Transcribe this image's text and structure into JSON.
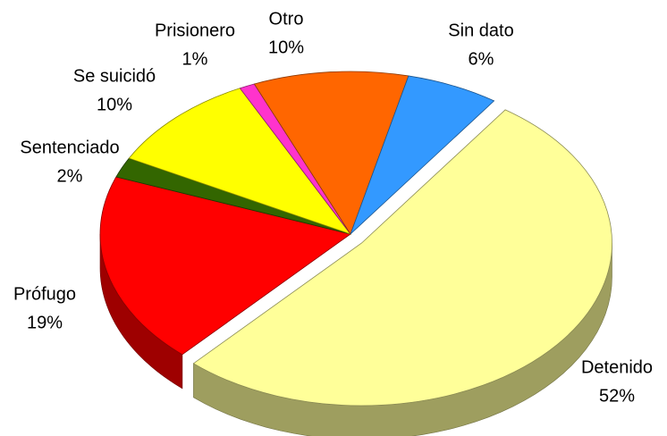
{
  "chart_data": {
    "type": "pie",
    "categories": [
      "Detenido",
      "Prófugo",
      "Sentenciado",
      "Se suicidó",
      "Prisionero",
      "Otro",
      "Sin dato"
    ],
    "values": [
      52,
      19,
      2,
      10,
      1,
      10,
      6
    ],
    "value_labels": [
      "52%",
      "19%",
      "2%",
      "10%",
      "1%",
      "10%",
      "6%"
    ],
    "colors": [
      "#ffff99",
      "#ff0000",
      "#336600",
      "#ffff00",
      "#ff33cc",
      "#ff6600",
      "#3399ff"
    ]
  }
}
